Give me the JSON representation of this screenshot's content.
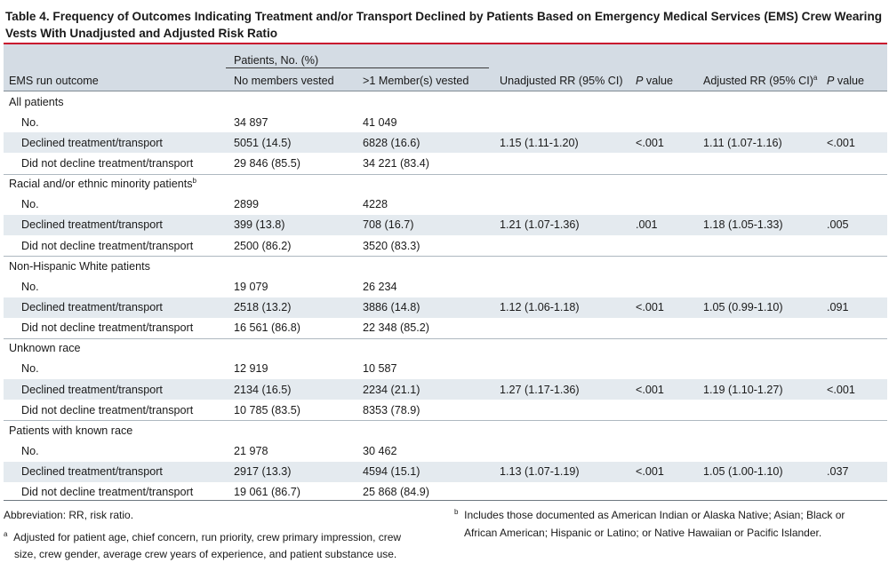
{
  "caption": "Table 4. Frequency of Outcomes Indicating Treatment and/or Transport Declined by Patients Based on Emergency Medical Services (EMS) Crew Wearing Vests With Unadjusted and Adjusted Risk Ratio",
  "colors": {
    "accent_rule": "#c8102e",
    "header_bg": "#d4dce4",
    "band_bg": "#e4eaef"
  },
  "header": {
    "group_label": "Patients, No. (%)",
    "col_outcome": "EMS run outcome",
    "col_no_vest": "No members vested",
    "col_vest": ">1 Member(s) vested",
    "col_unadj": "Unadjusted RR (95% CI)",
    "col_p1": "P",
    "col_p1_suffix": " value",
    "col_adj": "Adjusted RR (95% CI)",
    "col_adj_mark": "a",
    "col_p2": "P",
    "col_p2_suffix": " value"
  },
  "sections": [
    {
      "title": "All patients",
      "title_mark": "",
      "rows": [
        {
          "label": "No.",
          "no_vest": "34 897",
          "vest": "41 049"
        },
        {
          "label": "Declined treatment/transport",
          "no_vest": "5051 (14.5)",
          "vest": "6828 (16.6)"
        },
        {
          "label": "Did not decline treatment/transport",
          "no_vest": "29 846 (85.5)",
          "vest": "34 221 (83.4)"
        }
      ],
      "unadj": "1.15 (1.11-1.20)",
      "p1": "<.001",
      "adj": "1.11 (1.07-1.16)",
      "p2": "<.001"
    },
    {
      "title": "Racial and/or ethnic minority patients",
      "title_mark": "b",
      "rows": [
        {
          "label": "No.",
          "no_vest": "2899",
          "vest": "4228"
        },
        {
          "label": "Declined treatment/transport",
          "no_vest": "399 (13.8)",
          "vest": "708 (16.7)"
        },
        {
          "label": "Did not decline treatment/transport",
          "no_vest": "2500 (86.2)",
          "vest": "3520 (83.3)"
        }
      ],
      "unadj": "1.21 (1.07-1.36)",
      "p1": ".001",
      "adj": "1.18 (1.05-1.33)",
      "p2": ".005"
    },
    {
      "title": "Non-Hispanic White patients",
      "title_mark": "",
      "rows": [
        {
          "label": "No.",
          "no_vest": "19 079",
          "vest": "26 234"
        },
        {
          "label": "Declined treatment/transport",
          "no_vest": "2518 (13.2)",
          "vest": "3886 (14.8)"
        },
        {
          "label": "Did not decline treatment/transport",
          "no_vest": "16 561 (86.8)",
          "vest": "22 348 (85.2)"
        }
      ],
      "unadj": "1.12 (1.06-1.18)",
      "p1": "<.001",
      "adj": "1.05 (0.99-1.10)",
      "p2": ".091"
    },
    {
      "title": "Unknown race",
      "title_mark": "",
      "rows": [
        {
          "label": "No.",
          "no_vest": "12 919",
          "vest": "10 587"
        },
        {
          "label": "Declined treatment/transport",
          "no_vest": "2134 (16.5)",
          "vest": "2234 (21.1)"
        },
        {
          "label": "Did not decline treatment/transport",
          "no_vest": "10 785 (83.5)",
          "vest": "8353 (78.9)"
        }
      ],
      "unadj": "1.27 (1.17-1.36)",
      "p1": "<.001",
      "adj": "1.19 (1.10-1.27)",
      "p2": "<.001"
    },
    {
      "title": "Patients with known race",
      "title_mark": "",
      "rows": [
        {
          "label": "No.",
          "no_vest": "21 978",
          "vest": "30 462"
        },
        {
          "label": "Declined treatment/transport",
          "no_vest": "2917 (13.3)",
          "vest": "4594 (15.1)"
        },
        {
          "label": "Did not decline treatment/transport",
          "no_vest": "19 061 (86.7)",
          "vest": "25 868 (84.9)"
        }
      ],
      "unadj": "1.13 (1.07-1.19)",
      "p1": "<.001",
      "adj": "1.05 (1.00-1.10)",
      "p2": ".037"
    }
  ],
  "footnotes": {
    "abbreviation": "Abbreviation: RR, risk ratio.",
    "a_mark": "a",
    "a_line1": "Adjusted for patient age, chief concern, run priority, crew primary impression, crew",
    "a_line2": "size, crew gender, average crew years of experience, and patient substance use.",
    "b_mark": "b",
    "b_line1": "Includes those documented as American Indian or Alaska Native; Asian; Black or",
    "b_line2": "African American; Hispanic or Latino; or Native Hawaiian or Pacific Islander."
  }
}
